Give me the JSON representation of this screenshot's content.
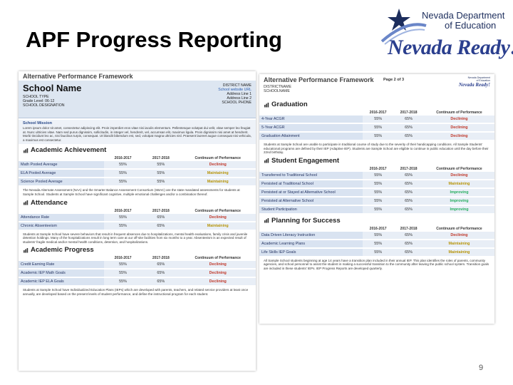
{
  "slide": {
    "title": "APF Progress Reporting",
    "page_number": "9",
    "logo": {
      "line1": "Nevada Department",
      "line2": "of Education",
      "tagline": "Nevada Ready!"
    }
  },
  "doc1": {
    "framework_title": "Alternative Performance Framework",
    "school_name": "School Name",
    "left_info": [
      "SCHOOL TYPE",
      "Grade Level: 06-12",
      "SCHOOL DESIGNATION"
    ],
    "right_info": [
      "DISTRICT NAME",
      "School website URL",
      "Address Line 1",
      "Address Line 2",
      "SCHOOL PHONE"
    ],
    "mission_heading": "School Mission",
    "mission_text": "Lorem ipsum dolor sit amet, consectetur adipiscing elit. Proin imperdiet eros vitae nisi iaculis elementum. Pellentesque volutpat dui velit, vitae semper leo feugiat at. Nunc ultricies vitae. Nam sed purus dignissim, sollicitudin, in integer vel, hendrerit, vel, accumsan elit, maximus ligula. Proin dignissim nisi amet at hendrerit. Morbi tincidunt leo ac, nisi faucibus turpis, consequat. Ut blandit bibendum est, sed, volutpat magna ultricies nisl. Praesent laoreet augue consequat nisi vehicula, a maximus est consectetur.",
    "sections": [
      {
        "name": "Academic Achievement",
        "cols": [
          "2016-2017",
          "2017-2018",
          "Continuum of Performance"
        ],
        "rows": [
          {
            "label": "Math Pooled Average",
            "a": "55%",
            "b": "55%",
            "status": "Declining",
            "kind": "dec"
          },
          {
            "label": "ELA Pooled Average",
            "a": "55%",
            "b": "55%",
            "status": "Maintaining",
            "kind": "mai"
          },
          {
            "label": "Science Pooled Average",
            "a": "55%",
            "b": "55%",
            "status": "Maintaining",
            "kind": "mai"
          }
        ],
        "note": "The Nevada Alternate Assessment (NAA) and the Smarter Balance Assessment Consortium (SBAC) are the state mandated assessments for students at Sample School. Students at Sample School have significant cognitive, multiple emotional challenges and/or a combination thereof."
      },
      {
        "name": "Attendance",
        "cols": [
          "2016-2017",
          "2017-2018",
          "Continuum of Performance"
        ],
        "rows": [
          {
            "label": "Attendance Rate",
            "a": "55%",
            "b": "65%",
            "status": "Declining",
            "kind": "dec"
          },
          {
            "label": "Chronic Absenteeism",
            "a": "55%",
            "b": "65%",
            "status": "Maintaining",
            "kind": "mai"
          }
        ],
        "note": "Students at Sample School have severe behaviors that result in frequent absences due to hospitalizations, mental health evaluations, family crisis and juvenile detention holdings. Many of the hospitalizations result in long term care at our off-site facilities from six months to a year. Absenteeism is an expected result of students' fragile medical and/or mental health conditions, detention, and hospitalizations."
      },
      {
        "name": "Academic Progress",
        "cols": [
          "2016-2017",
          "2017-2018",
          "Continuum of Performance"
        ],
        "rows": [
          {
            "label": "Credit Earning Rate",
            "a": "55%",
            "b": "65%",
            "status": "Declining",
            "kind": "dec"
          },
          {
            "label": "Academic IEP Math Goals",
            "a": "55%",
            "b": "65%",
            "status": "Declining",
            "kind": "dec"
          },
          {
            "label": "Academic IEP ELA Goals",
            "a": "55%",
            "b": "65%",
            "status": "Declining",
            "kind": "dec"
          }
        ],
        "note": "Students at Sample School have Individualized Education Plans (IEPs) which are developed with parents, teachers, and related service providers at least once annually, are developed based on the present levels of student performance, and define the instructional program for each student."
      }
    ]
  },
  "doc2": {
    "framework_title": "Alternative Performance Framework",
    "page_label": "Page 2 of 3",
    "district": "DISTRICTNAME",
    "school": "SCHOOLNAME",
    "mini_logo": {
      "line1": "Nevada Department",
      "line2": "of Education",
      "tagline": "Nevada Ready!"
    },
    "sections": [
      {
        "name": "Graduation",
        "cols": [
          "2016-2017",
          "2017-2018",
          "Continuum of Performance"
        ],
        "rows": [
          {
            "label": "4-Year ACGR",
            "a": "55%",
            "b": "65%",
            "status": "Declining",
            "kind": "dec"
          },
          {
            "label": "5-Year ACGR",
            "a": "55%",
            "b": "65%",
            "status": "Declining",
            "kind": "dec"
          },
          {
            "label": "Graduation Attainment",
            "a": "55%",
            "b": "65%",
            "status": "Declining",
            "kind": "dec"
          }
        ],
        "note": "Students at Sample School are unable to participate in traditional course of study due to the severity of their handicapping conditions. All Sample Students' educational programs are defined by their IEP (Adaptive IEP). Students are Sample School are eligible to continue in public education until the day before their 22nd birthday."
      },
      {
        "name": "Student Engagement",
        "cols": [
          "2016-2017",
          "2017-2018",
          "Continuum of Performance"
        ],
        "rows": [
          {
            "label": "Transferred to Traditional School",
            "a": "55%",
            "b": "65%",
            "status": "Declining",
            "kind": "dec"
          },
          {
            "label": "Persisted at Traditional School",
            "a": "55%",
            "b": "65%",
            "status": "Maintaining",
            "kind": "mai"
          },
          {
            "label": "Persisted at or Stayed at Alternative School",
            "a": "55%",
            "b": "65%",
            "status": "Improving",
            "kind": "imp"
          },
          {
            "label": "Persisted at Alternative School",
            "a": "55%",
            "b": "65%",
            "status": "Improving",
            "kind": "imp"
          },
          {
            "label": "Student Participation",
            "a": "55%",
            "b": "65%",
            "status": "Improving",
            "kind": "imp"
          }
        ],
        "note": ""
      },
      {
        "name": "Planning for Success",
        "cols": [
          "2016-2017",
          "2017-2018",
          "Continuum of Performance"
        ],
        "rows": [
          {
            "label": "Data Driven Literacy Instruction",
            "a": "55%",
            "b": "65%",
            "status": "Declining",
            "kind": "dec"
          },
          {
            "label": "Academic Learning Plans",
            "a": "55%",
            "b": "65%",
            "status": "Maintaining",
            "kind": "mai"
          },
          {
            "label": "Life Skills IEP Goals",
            "a": "55%",
            "b": "65%",
            "status": "Maintaining",
            "kind": "mai"
          }
        ],
        "note": "All Sample School students beginning at age 14 years have a transition plan included in their annual IEP. This plan identifies the roles of parents, community agencies, and school personnel to assist the student in making a successful transition to the community after leaving the public school system. Transition goals are included in these students' IEPs. IEP Progress Reports are developed quarterly."
      }
    ]
  },
  "colors": {
    "header_bg": "#dde6f1",
    "declining": "#c0392b",
    "maintaining": "#b7950b",
    "improving": "#27ae60",
    "brand": "#2b3f8e"
  }
}
